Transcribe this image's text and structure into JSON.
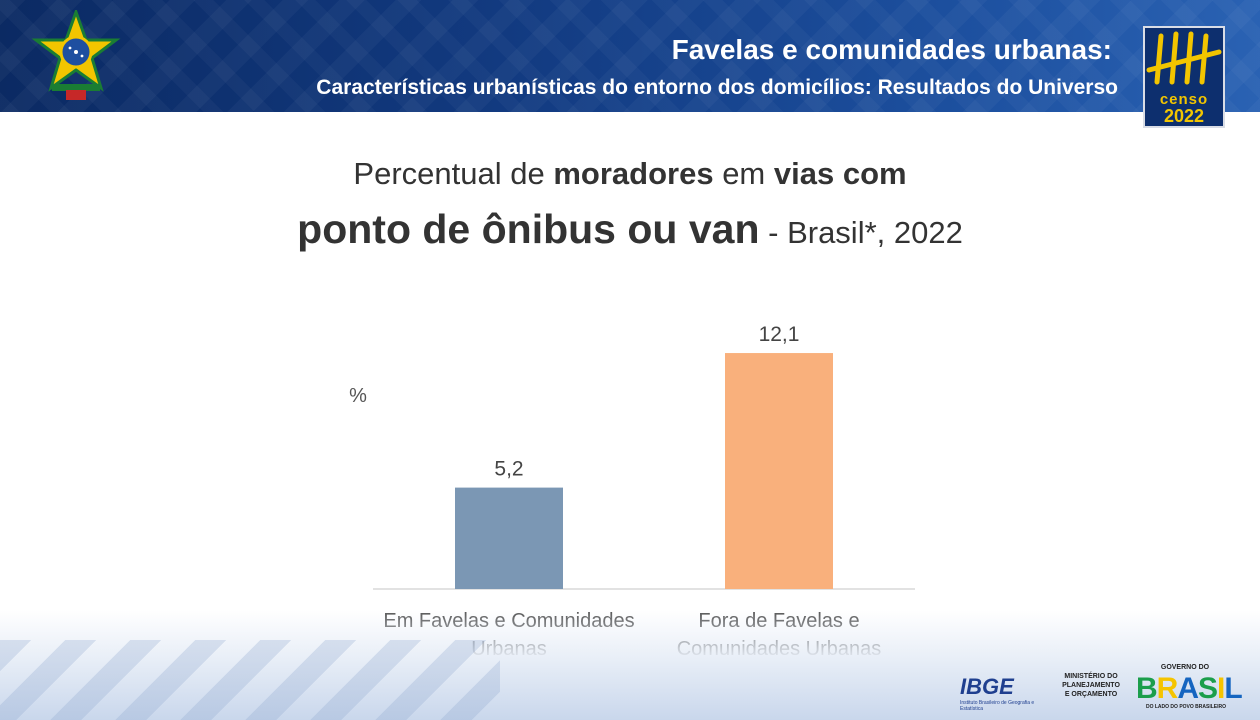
{
  "header": {
    "title": "Favelas e comunidades urbanas:",
    "subtitle": "Características urbanísticas do entorno dos domicílios: Resultados do Universo",
    "censo_word": "censo",
    "censo_year": "2022"
  },
  "chart_title": {
    "line1_a": "Percentual de ",
    "line1_b": "moradores",
    "line1_c": " em ",
    "line1_d": "vias com",
    "line2_big": "ponto de ônibus ou van",
    "line2_small": " - Brasil*, 2022"
  },
  "chart_data": {
    "type": "bar",
    "ylabel": "%",
    "categories": [
      [
        "Em Favelas e Comunidades",
        "Urbanas"
      ],
      [
        "Fora de Favelas e",
        "Comunidades Urbanas"
      ]
    ],
    "values": [
      5.2,
      12.1
    ],
    "value_labels": [
      "5,2",
      "12,1"
    ],
    "colors": [
      "#7b97b4",
      "#f9b07c"
    ],
    "ylim": [
      0,
      14
    ],
    "grid": false
  },
  "footer": {
    "ibge": "IBGE",
    "ibge_sub": "Instituto Brasileiro de Geografia e Estatística",
    "mpo": [
      "MINISTÉRIO DO",
      "PLANEJAMENTO",
      "E ORÇAMENTO"
    ],
    "gov_top": "GOVERNO DO",
    "gov_brasil_letters": [
      "B",
      "R",
      "A",
      "S",
      "I",
      "L"
    ],
    "gov_brasil_colors": [
      "#1b9e4b",
      "#f5c400",
      "#1565c0",
      "#1b9e4b",
      "#f5c400",
      "#1565c0"
    ],
    "gov_bottom": "DO LADO DO POVO BRASILEIRO"
  }
}
